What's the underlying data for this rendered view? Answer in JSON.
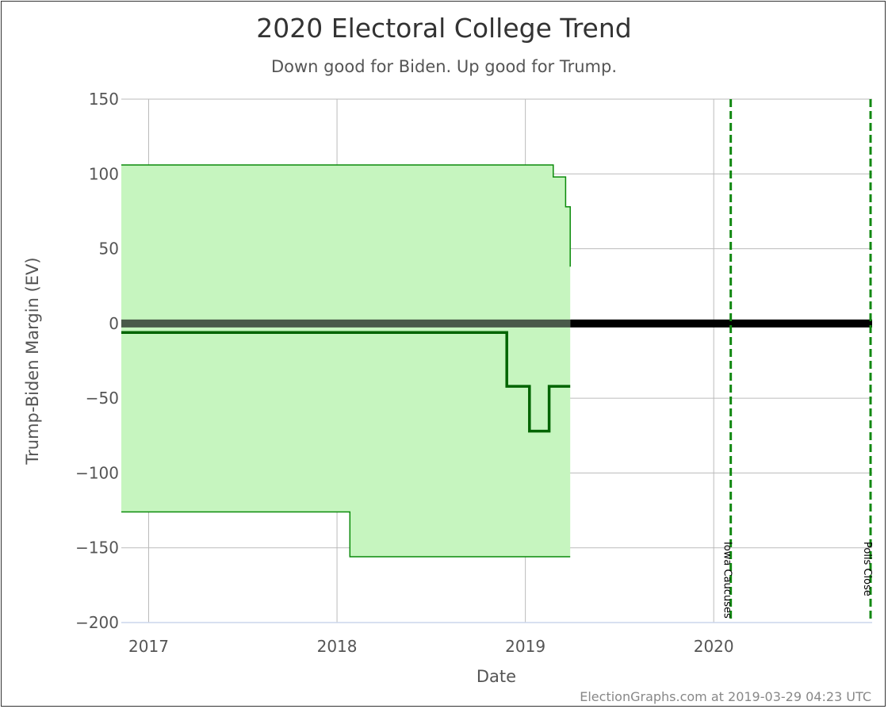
{
  "chart_data": {
    "type": "line",
    "title": "2020 Electoral College Trend",
    "subtitle": "Down good for Biden. Up good for Trump.",
    "xlabel": "Date",
    "ylabel": "Trump-Biden Margin (EV)",
    "credit": "ElectionGraphs.com at 2019-03-29 04:23 UTC",
    "xlim": [
      "2016-11-09",
      "2020-11-03"
    ],
    "ylim": [
      -200,
      150
    ],
    "yticks": [
      150,
      100,
      50,
      0,
      -50,
      -100,
      -150,
      -200
    ],
    "xticks": [
      {
        "label": "2017",
        "date": "2017-01-01"
      },
      {
        "label": "2018",
        "date": "2018-01-01"
      },
      {
        "label": "2019",
        "date": "2019-01-01"
      },
      {
        "label": "2020",
        "date": "2020-01-01"
      }
    ],
    "grid": true,
    "colors": {
      "band_fill": "#c6f5bf",
      "band_line": "#0a8a0a",
      "expected_line": "#006400",
      "zero_line": "#000000",
      "event_line": "#118811"
    },
    "series": [
      {
        "key": "best_trump",
        "points": [
          [
            "2016-11-09",
            106
          ],
          [
            "2019-02-24",
            106
          ],
          [
            "2019-02-24",
            98
          ],
          [
            "2019-03-20",
            98
          ],
          [
            "2019-03-20",
            78
          ],
          [
            "2019-03-29",
            78
          ],
          [
            "2019-03-29",
            38
          ]
        ]
      },
      {
        "key": "expected",
        "points": [
          [
            "2016-11-09",
            -6
          ],
          [
            "2018-11-26",
            -6
          ],
          [
            "2018-11-26",
            -42
          ],
          [
            "2019-01-09",
            -42
          ],
          [
            "2019-01-09",
            -72
          ],
          [
            "2019-02-16",
            -72
          ],
          [
            "2019-02-16",
            -42
          ],
          [
            "2019-03-29",
            -42
          ]
        ]
      },
      {
        "key": "best_biden",
        "points": [
          [
            "2016-11-09",
            -126
          ],
          [
            "2018-01-26",
            -126
          ],
          [
            "2018-01-26",
            -156
          ],
          [
            "2019-03-29",
            -156
          ]
        ]
      }
    ],
    "events": [
      {
        "label": "Iowa Caucuses",
        "date": "2020-02-03"
      },
      {
        "label": "Polls Close",
        "date": "2020-11-03"
      }
    ]
  }
}
